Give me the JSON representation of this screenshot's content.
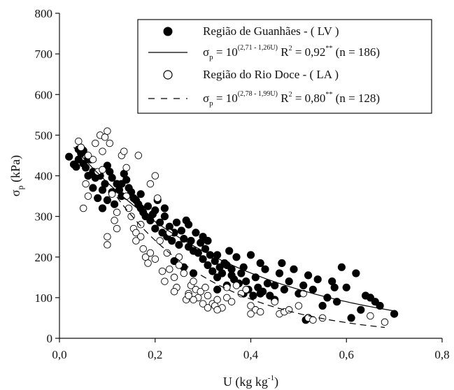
{
  "chart_data": {
    "type": "scatter",
    "xlabel": "U (kg kg",
    "xlabel_sup": "-1",
    "xlabel_end": ")",
    "ylabel_main": "σ",
    "ylabel_sub": "p",
    "ylabel_end": " (kPa)",
    "xlim": [
      0,
      0.8
    ],
    "ylim": [
      0,
      800
    ],
    "x_ticks": [
      0.0,
      0.2,
      0.4,
      0.6,
      0.8
    ],
    "x_tick_labels": [
      "0,0",
      "0,2",
      "0,4",
      "0,6",
      "0,8"
    ],
    "y_ticks": [
      0,
      100,
      200,
      300,
      400,
      500,
      600,
      700,
      800
    ],
    "y_tick_labels": [
      "0",
      "100",
      "200",
      "300",
      "400",
      "500",
      "600",
      "700",
      "800"
    ],
    "grid": false,
    "legend_position": "top-right",
    "legend": [
      {
        "marker": "filled-circle",
        "text": "Região de Guanhães - ( LV )"
      },
      {
        "marker": "solid-line",
        "sigma": "σ",
        "sub": "p",
        "eq": " = 10",
        "sup": "(2,71 - 1,26U)",
        "r2": " R",
        "r2sup": "2",
        "stat": " = 0,92",
        "stat_sup": "**",
        "n": " (n = 186)"
      },
      {
        "marker": "open-circle",
        "text": "Região do Rio Doce - ( LA )"
      },
      {
        "marker": "dashed-line",
        "sigma": "σ",
        "sub": "p",
        "eq": " = 10",
        "sup": "(2,78 - 1,99U)",
        "r2": " R",
        "r2sup": "2",
        "stat": " = 0,80",
        "stat_sup": "**",
        "n": " (n = 128)"
      }
    ],
    "series": [
      {
        "name": "Região de Guanhães - ( LV )",
        "marker": "filled",
        "curve": {
          "a": 2.71,
          "b": 1.26,
          "x_range": [
            0.03,
            0.7
          ]
        },
        "points": [
          [
            0.02,
            447
          ],
          [
            0.03,
            428
          ],
          [
            0.035,
            422
          ],
          [
            0.04,
            465
          ],
          [
            0.045,
            455
          ],
          [
            0.05,
            462
          ],
          [
            0.05,
            430
          ],
          [
            0.055,
            420
          ],
          [
            0.06,
            445
          ],
          [
            0.065,
            440
          ],
          [
            0.07,
            410
          ],
          [
            0.07,
            370
          ],
          [
            0.075,
            395
          ],
          [
            0.08,
            345
          ],
          [
            0.085,
            400
          ],
          [
            0.09,
            365
          ],
          [
            0.095,
            380
          ],
          [
            0.1,
            425
          ],
          [
            0.1,
            340
          ],
          [
            0.105,
            410
          ],
          [
            0.11,
            395
          ],
          [
            0.11,
            360
          ],
          [
            0.115,
            330
          ],
          [
            0.12,
            380
          ],
          [
            0.125,
            365
          ],
          [
            0.13,
            350
          ],
          [
            0.135,
            405
          ],
          [
            0.14,
            390
          ],
          [
            0.145,
            370
          ],
          [
            0.15,
            360
          ],
          [
            0.155,
            345
          ],
          [
            0.16,
            340
          ],
          [
            0.165,
            330
          ],
          [
            0.17,
            320
          ],
          [
            0.175,
            310
          ],
          [
            0.18,
            300
          ],
          [
            0.185,
            325
          ],
          [
            0.19,
            290
          ],
          [
            0.195,
            305
          ],
          [
            0.2,
            315
          ],
          [
            0.2,
            270
          ],
          [
            0.205,
            340
          ],
          [
            0.21,
            285
          ],
          [
            0.215,
            260
          ],
          [
            0.22,
            300
          ],
          [
            0.225,
            250
          ],
          [
            0.23,
            275
          ],
          [
            0.235,
            240
          ],
          [
            0.24,
            260
          ],
          [
            0.245,
            285
          ],
          [
            0.25,
            230
          ],
          [
            0.255,
            265
          ],
          [
            0.26,
            245
          ],
          [
            0.265,
            290
          ],
          [
            0.27,
            225
          ],
          [
            0.275,
            240
          ],
          [
            0.28,
            215
          ],
          [
            0.285,
            260
          ],
          [
            0.29,
            210
          ],
          [
            0.295,
            235
          ],
          [
            0.3,
            195
          ],
          [
            0.3,
            250
          ],
          [
            0.305,
            220
          ],
          [
            0.31,
            180
          ],
          [
            0.315,
            205
          ],
          [
            0.32,
            165
          ],
          [
            0.325,
            190
          ],
          [
            0.33,
            150
          ],
          [
            0.335,
            175
          ],
          [
            0.34,
            160
          ],
          [
            0.345,
            185
          ],
          [
            0.35,
            130
          ],
          [
            0.355,
            215
          ],
          [
            0.36,
            170
          ],
          [
            0.365,
            145
          ],
          [
            0.37,
            200
          ],
          [
            0.375,
            135
          ],
          [
            0.38,
            160
          ],
          [
            0.385,
            110
          ],
          [
            0.39,
            140
          ],
          [
            0.395,
            120
          ],
          [
            0.4,
            205
          ],
          [
            0.405,
            105
          ],
          [
            0.41,
            150
          ],
          [
            0.415,
            125
          ],
          [
            0.42,
            185
          ],
          [
            0.425,
            115
          ],
          [
            0.43,
            170
          ],
          [
            0.435,
            135
          ],
          [
            0.44,
            105
          ],
          [
            0.45,
            130
          ],
          [
            0.46,
            160
          ],
          [
            0.465,
            185
          ],
          [
            0.47,
            120
          ],
          [
            0.48,
            140
          ],
          [
            0.49,
            170
          ],
          [
            0.5,
            110
          ],
          [
            0.51,
            130
          ],
          [
            0.515,
            45
          ],
          [
            0.52,
            155
          ],
          [
            0.53,
            120
          ],
          [
            0.54,
            145
          ],
          [
            0.55,
            80
          ],
          [
            0.56,
            100
          ],
          [
            0.57,
            140
          ],
          [
            0.58,
            90
          ],
          [
            0.59,
            175
          ],
          [
            0.6,
            125
          ],
          [
            0.61,
            50
          ],
          [
            0.62,
            160
          ],
          [
            0.63,
            70
          ],
          [
            0.64,
            105
          ],
          [
            0.65,
            100
          ],
          [
            0.66,
            90
          ],
          [
            0.67,
            80
          ],
          [
            0.7,
            60
          ],
          [
            0.04,
            440
          ],
          [
            0.06,
            400
          ],
          [
            0.09,
            320
          ],
          [
            0.13,
            380
          ],
          [
            0.17,
            355
          ],
          [
            0.22,
            320
          ],
          [
            0.27,
            280
          ],
          [
            0.31,
            240
          ],
          [
            0.33,
            205
          ],
          [
            0.36,
            155
          ],
          [
            0.26,
            175
          ],
          [
            0.28,
            160
          ],
          [
            0.24,
            190
          ],
          [
            0.42,
            110
          ],
          [
            0.52,
            50
          ],
          [
            0.575,
            125
          ],
          [
            0.45,
            95
          ],
          [
            0.385,
            175
          ],
          [
            0.35,
            180
          ],
          [
            0.33,
            120
          ]
        ]
      },
      {
        "name": "Região do Rio Doce - ( LA )",
        "marker": "open",
        "curve": {
          "a": 2.78,
          "b": 1.99,
          "x_range": [
            0.12,
            0.68
          ]
        },
        "points": [
          [
            0.04,
            485
          ],
          [
            0.045,
            470
          ],
          [
            0.05,
            320
          ],
          [
            0.055,
            380
          ],
          [
            0.06,
            350
          ],
          [
            0.07,
            440
          ],
          [
            0.075,
            480
          ],
          [
            0.08,
            410
          ],
          [
            0.085,
            500
          ],
          [
            0.09,
            460
          ],
          [
            0.095,
            495
          ],
          [
            0.1,
            510
          ],
          [
            0.1,
            250
          ],
          [
            0.1,
            230
          ],
          [
            0.105,
            480
          ],
          [
            0.11,
            355
          ],
          [
            0.115,
            290
          ],
          [
            0.12,
            270
          ],
          [
            0.13,
            450
          ],
          [
            0.135,
            460
          ],
          [
            0.14,
            420
          ],
          [
            0.145,
            320
          ],
          [
            0.15,
            300
          ],
          [
            0.155,
            270
          ],
          [
            0.16,
            260
          ],
          [
            0.165,
            450
          ],
          [
            0.17,
            250
          ],
          [
            0.175,
            220
          ],
          [
            0.18,
            200
          ],
          [
            0.185,
            185
          ],
          [
            0.19,
            380
          ],
          [
            0.2,
            400
          ],
          [
            0.205,
            345
          ],
          [
            0.21,
            240
          ],
          [
            0.215,
            165
          ],
          [
            0.22,
            140
          ],
          [
            0.225,
            210
          ],
          [
            0.23,
            170
          ],
          [
            0.24,
            150
          ],
          [
            0.245,
            125
          ],
          [
            0.25,
            200
          ],
          [
            0.26,
            160
          ],
          [
            0.265,
            95
          ],
          [
            0.27,
            110
          ],
          [
            0.275,
            130
          ],
          [
            0.28,
            140
          ],
          [
            0.285,
            120
          ],
          [
            0.29,
            100
          ],
          [
            0.295,
            115
          ],
          [
            0.3,
            85
          ],
          [
            0.305,
            125
          ],
          [
            0.31,
            105
          ],
          [
            0.32,
            85
          ],
          [
            0.325,
            80
          ],
          [
            0.33,
            95
          ],
          [
            0.34,
            75
          ],
          [
            0.35,
            100
          ],
          [
            0.36,
            90
          ],
          [
            0.37,
            130
          ],
          [
            0.38,
            110
          ],
          [
            0.39,
            120
          ],
          [
            0.4,
            80
          ],
          [
            0.41,
            70
          ],
          [
            0.42,
            65
          ],
          [
            0.45,
            90
          ],
          [
            0.46,
            60
          ],
          [
            0.47,
            65
          ],
          [
            0.48,
            70
          ],
          [
            0.5,
            80
          ],
          [
            0.51,
            110
          ],
          [
            0.52,
            50
          ],
          [
            0.53,
            45
          ],
          [
            0.65,
            55
          ],
          [
            0.68,
            40
          ],
          [
            0.06,
            450
          ],
          [
            0.09,
            415
          ],
          [
            0.14,
            350
          ],
          [
            0.17,
            280
          ],
          [
            0.2,
            195
          ],
          [
            0.23,
            260
          ],
          [
            0.25,
            180
          ],
          [
            0.28,
            95
          ],
          [
            0.31,
            75
          ],
          [
            0.35,
            125
          ],
          [
            0.4,
            60
          ],
          [
            0.55,
            50
          ],
          [
            0.12,
            310
          ],
          [
            0.16,
            240
          ],
          [
            0.19,
            210
          ],
          [
            0.24,
            115
          ],
          [
            0.27,
            105
          ],
          [
            0.33,
            70
          ]
        ]
      }
    ]
  }
}
